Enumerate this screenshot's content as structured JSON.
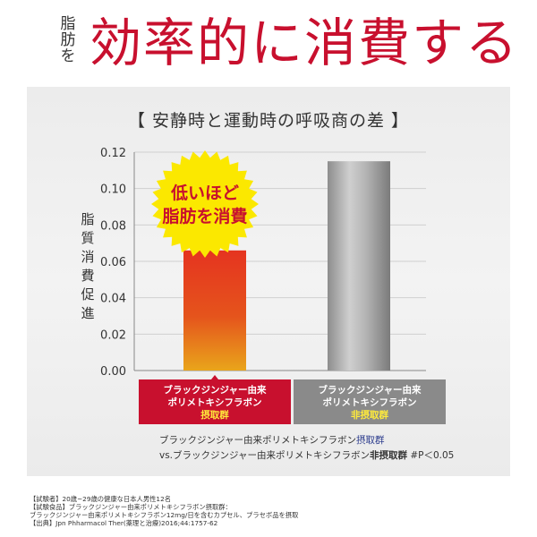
{
  "header": {
    "small": "脂肪を",
    "big": "効率的に消費する"
  },
  "chart_data": {
    "type": "bar",
    "title": "【 安静時と運動時の呼吸商の差 】",
    "ylabel": "脂質消費促進",
    "ylim": [
      0,
      0.12
    ],
    "yticks": [
      "0.00",
      "0.02",
      "0.04",
      "0.06",
      "0.08",
      "0.10",
      "0.12"
    ],
    "categories": [
      {
        "lines": [
          "ブラックジンジャー由来",
          "ポリメトキシフラボン"
        ],
        "group": "摂取群"
      },
      {
        "lines": [
          "ブラックジンジャー由来",
          "ポリメトキシフラボン"
        ],
        "group": "非摂取群"
      }
    ],
    "values": [
      0.066,
      0.115
    ],
    "colors": {
      "bar1_top": "#e8381d",
      "bar1_bottom": "#e8a11a",
      "label1": "#c8102e",
      "label2": "#8a8a8a",
      "group_text": "#ffeb3b"
    },
    "badge": {
      "line1": "低いほど",
      "line2": "脂肪を消費"
    },
    "comparison": {
      "line1_prefix": "ブラックジンジャー由来ポリメトキシフラボン",
      "line1_em": "摂取群",
      "line2_prefix": "vs.ブラックジンジャー由来ポリメトキシフラボン",
      "line2_em": "非摂取群",
      "line2_suffix": " #P＜0.05"
    }
  },
  "footnotes": [
    "【試験者】20歳~29歳の健康な日本人男性12名",
    "【試験食品】ブラックジンジャー由来ポリメトキシフラボン摂取群：",
    "ブラックジンジャー由来ポリメトキシフラボン12mg/日を含むカプセル、プラセボ品を摂取",
    "【出典】Jpn Phharmacol Ther(薬理と治療)2016;44:1757-62"
  ]
}
